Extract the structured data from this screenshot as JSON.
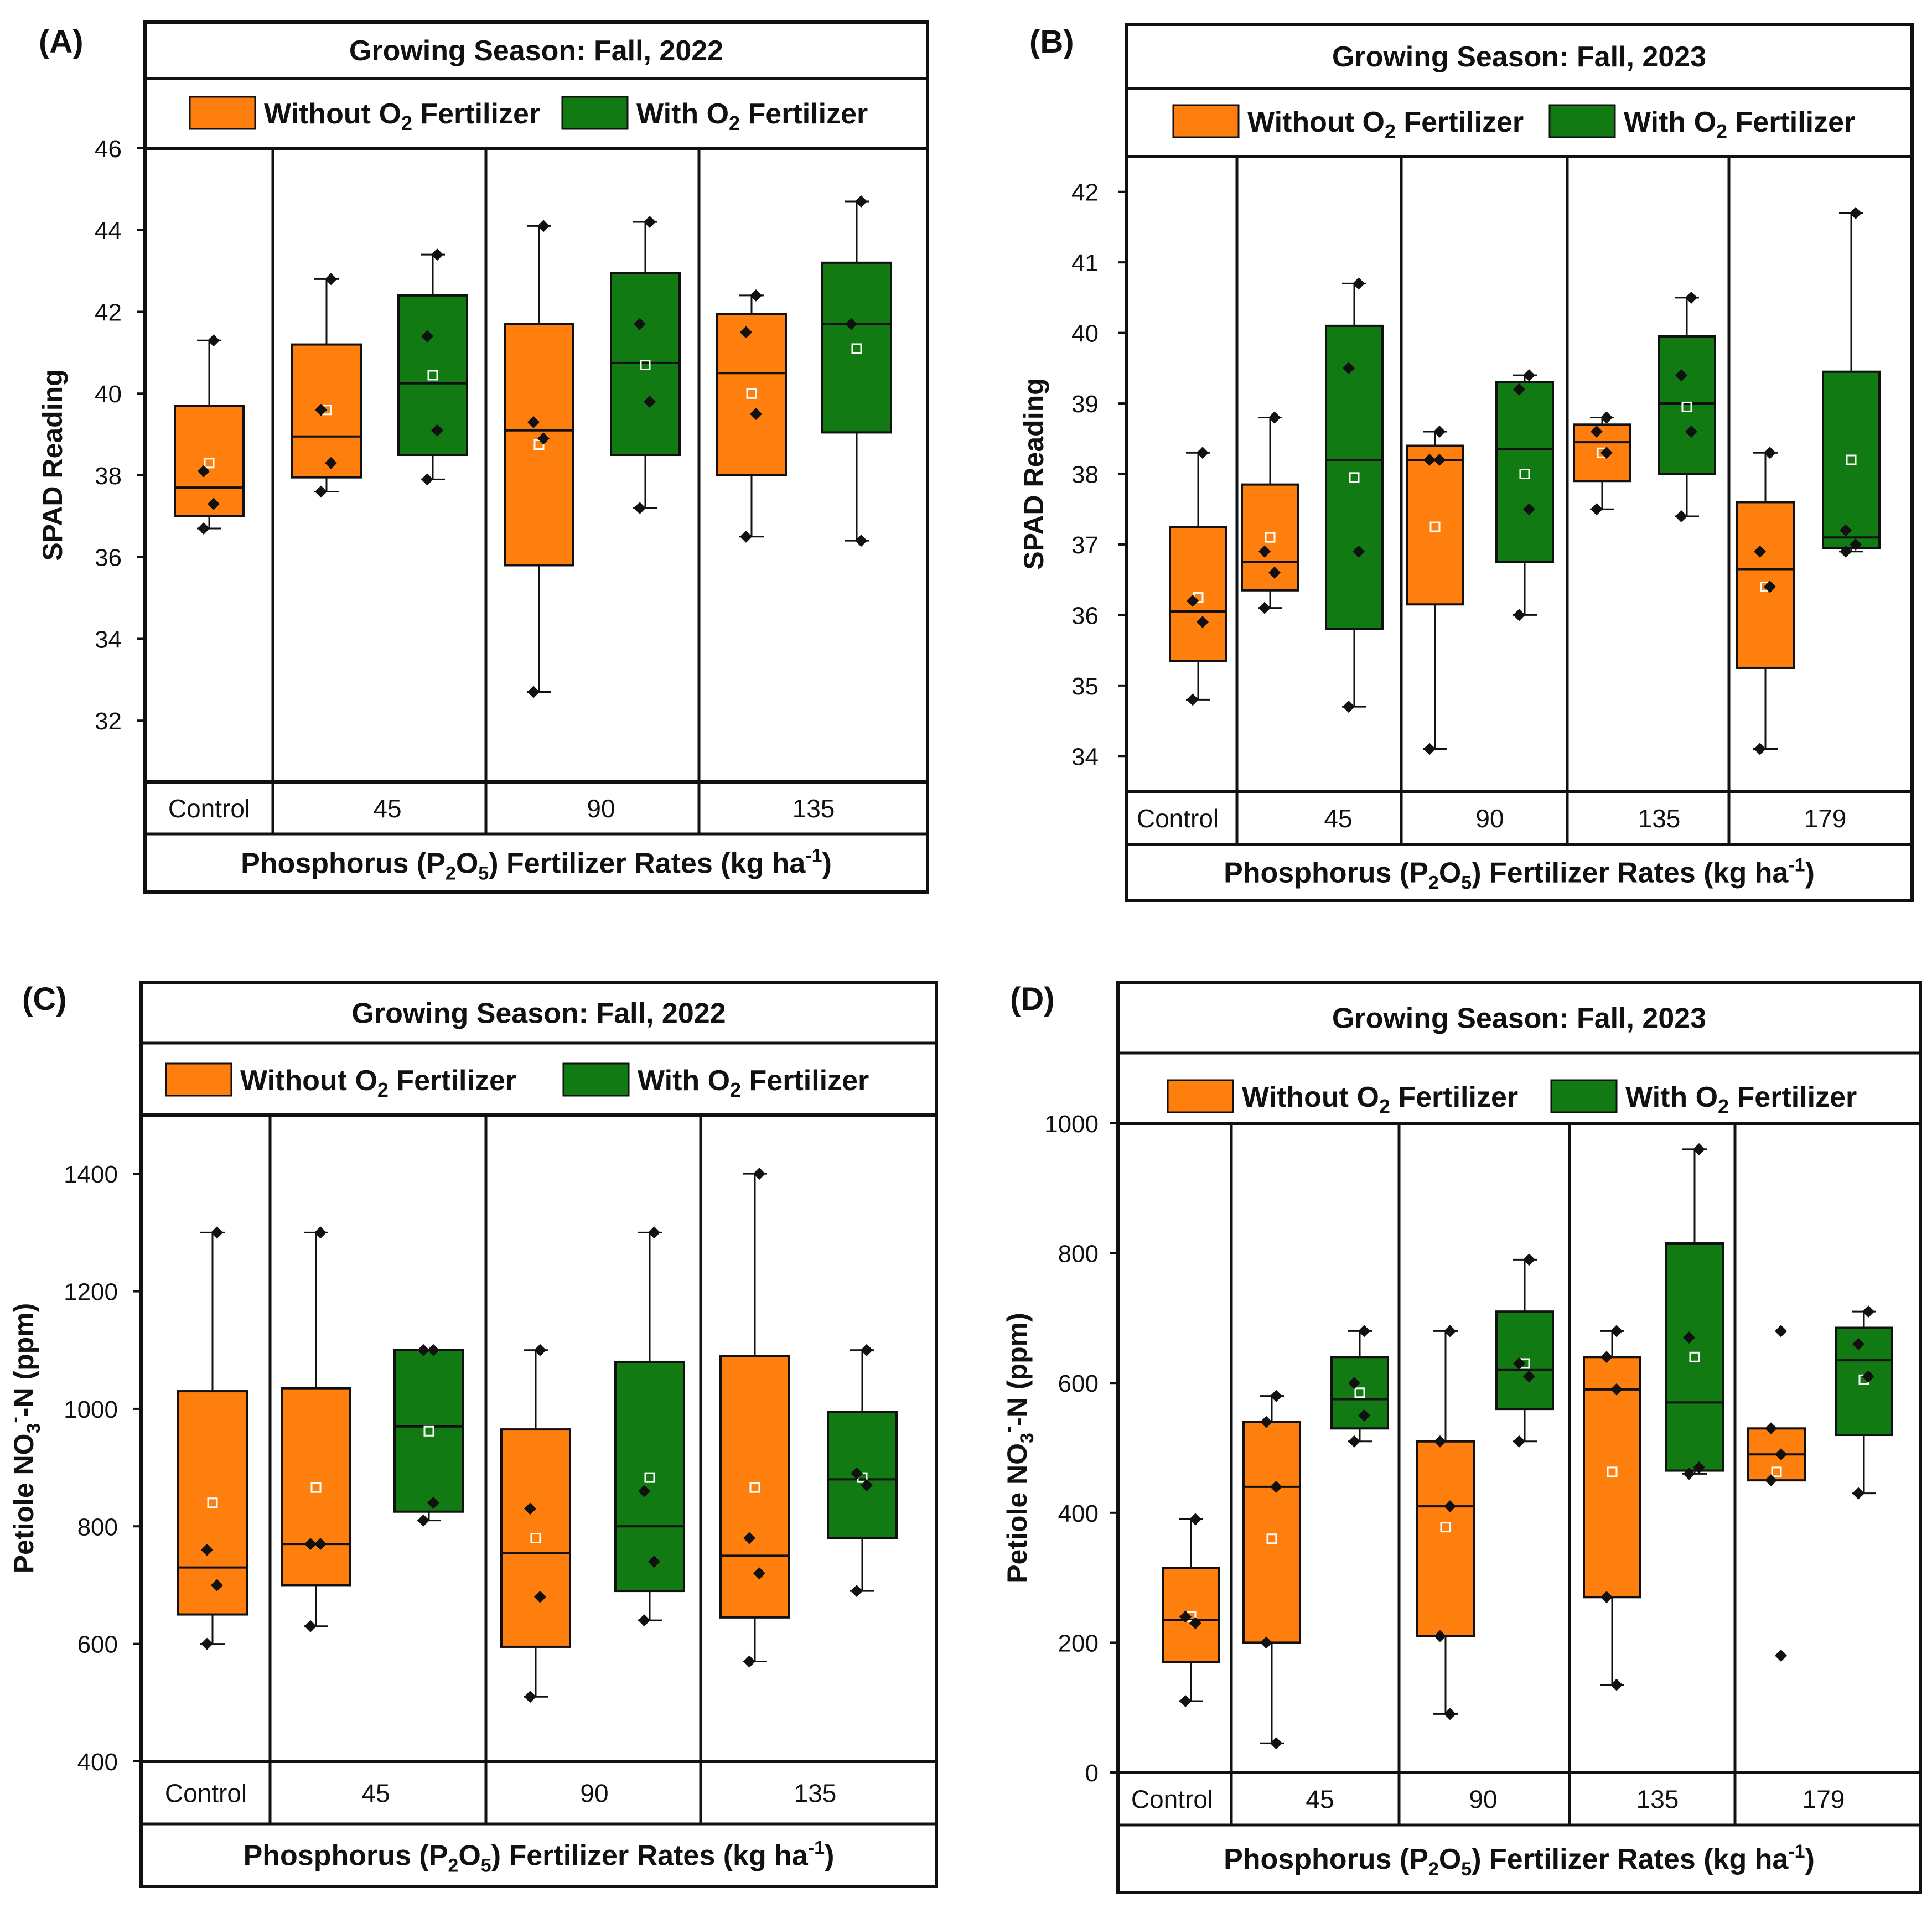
{
  "colors": {
    "without": "#ff7f0e",
    "with": "#127a12",
    "ink": "#111111",
    "background": "#ffffff"
  },
  "legend": {
    "without": {
      "prefix": "Without O",
      "sub": "2",
      "suffix": " Fertilizer"
    },
    "with": {
      "prefix": "With O",
      "sub": "2",
      "suffix": " Fertilizer"
    }
  },
  "xaxis": {
    "prefix": "Phosphorus (P",
    "sub1": "2",
    "mid1": "O",
    "sub2": "5",
    "mid2": ") Fertilizer Rates (kg ha",
    "sup": "-1",
    "suffix": ")"
  },
  "chart_data": [
    {
      "panel": "(A)",
      "type": "box",
      "title": "Growing Season: Fall, 2022",
      "ylabel": {
        "text": "SPAD Reading"
      },
      "ylim": [
        30.5,
        46
      ],
      "yticks": [
        32,
        34,
        36,
        38,
        40,
        42,
        44,
        46
      ],
      "categories": [
        "Control",
        "45",
        "90",
        "135"
      ],
      "series": [
        {
          "name": "Without O2 Fertilizer",
          "key": "without",
          "boxes": [
            {
              "category": "Control",
              "min": 36.7,
              "q1": 37.0,
              "median": 37.7,
              "q3": 39.7,
              "max": 41.3,
              "mean": 38.3,
              "points": [
                41.3,
                38.1,
                37.3,
                36.7
              ]
            },
            {
              "category": "45",
              "min": 37.6,
              "q1": 37.95,
              "median": 38.95,
              "q3": 41.2,
              "max": 42.8,
              "mean": 39.6,
              "points": [
                42.8,
                39.6,
                38.3,
                37.6
              ]
            },
            {
              "category": "90",
              "min": 32.7,
              "q1": 35.8,
              "median": 39.1,
              "q3": 41.7,
              "max": 44.1,
              "mean": 38.75,
              "points": [
                44.1,
                39.3,
                38.9,
                32.7
              ]
            },
            {
              "category": "135",
              "min": 36.5,
              "q1": 38.0,
              "median": 40.5,
              "q3": 41.95,
              "max": 42.4,
              "mean": 40.0,
              "points": [
                42.4,
                41.5,
                39.5,
                36.5
              ]
            }
          ]
        },
        {
          "name": "With O2 Fertilizer",
          "key": "with",
          "boxes": [
            {
              "category": "45",
              "min": 37.9,
              "q1": 38.5,
              "median": 40.25,
              "q3": 42.4,
              "max": 43.4,
              "mean": 40.45,
              "points": [
                43.4,
                41.4,
                39.1,
                37.9
              ]
            },
            {
              "category": "90",
              "min": 37.2,
              "q1": 38.5,
              "median": 40.75,
              "q3": 42.95,
              "max": 44.2,
              "mean": 40.7,
              "points": [
                44.2,
                41.7,
                39.8,
                37.2
              ]
            },
            {
              "category": "135",
              "min": 36.4,
              "q1": 39.05,
              "median": 41.7,
              "q3": 43.2,
              "max": 44.7,
              "mean": 41.1,
              "points": [
                44.7,
                41.7,
                36.4
              ]
            }
          ]
        }
      ]
    },
    {
      "panel": "(B)",
      "type": "box",
      "title": "Growing Season: Fall, 2023",
      "ylabel": {
        "text": "SPAD Reading"
      },
      "ylim": [
        33.5,
        42.5
      ],
      "yticks": [
        34,
        35,
        36,
        37,
        38,
        39,
        40,
        41,
        42
      ],
      "categories": [
        "Control",
        "45",
        "90",
        "135",
        "179"
      ],
      "series": [
        {
          "name": "Without O2 Fertilizer",
          "key": "without",
          "boxes": [
            {
              "category": "Control",
              "min": 34.8,
              "q1": 35.35,
              "median": 36.05,
              "q3": 37.25,
              "max": 38.3,
              "mean": 36.25,
              "points": [
                38.3,
                36.2,
                35.9,
                34.8
              ]
            },
            {
              "category": "45",
              "min": 36.1,
              "q1": 36.35,
              "median": 36.75,
              "q3": 37.85,
              "max": 38.8,
              "mean": 37.1,
              "points": [
                38.8,
                36.9,
                36.6,
                36.1
              ]
            },
            {
              "category": "90",
              "min": 34.1,
              "q1": 36.15,
              "median": 38.2,
              "q3": 38.4,
              "max": 38.6,
              "mean": 37.25,
              "points": [
                38.6,
                38.2,
                38.2,
                34.1
              ]
            },
            {
              "category": "135",
              "min": 37.5,
              "q1": 37.9,
              "median": 38.45,
              "q3": 38.7,
              "max": 38.8,
              "mean": 38.3,
              "points": [
                38.8,
                38.6,
                38.3,
                37.5
              ]
            },
            {
              "category": "179",
              "min": 34.1,
              "q1": 35.25,
              "median": 36.65,
              "q3": 37.6,
              "max": 38.3,
              "mean": 36.4,
              "points": [
                38.3,
                36.9,
                36.4,
                34.1
              ]
            }
          ]
        },
        {
          "name": "With O2 Fertilizer",
          "key": "with",
          "boxes": [
            {
              "category": "45",
              "min": 34.7,
              "q1": 35.8,
              "median": 38.2,
              "q3": 40.1,
              "max": 40.7,
              "mean": 37.95,
              "points": [
                40.7,
                39.5,
                36.9,
                34.7
              ]
            },
            {
              "category": "90",
              "min": 36.0,
              "q1": 36.75,
              "median": 38.35,
              "q3": 39.3,
              "max": 39.4,
              "mean": 38.0,
              "points": [
                39.4,
                39.2,
                37.5,
                36.0
              ]
            },
            {
              "category": "135",
              "min": 37.4,
              "q1": 38.0,
              "median": 39.0,
              "q3": 39.95,
              "max": 40.5,
              "mean": 38.95,
              "points": [
                40.5,
                39.4,
                38.6,
                37.4
              ]
            },
            {
              "category": "179",
              "min": 36.9,
              "q1": 36.95,
              "median": 37.1,
              "q3": 39.45,
              "max": 41.7,
              "mean": 38.2,
              "points": [
                41.7,
                37.2,
                37.0,
                36.9
              ]
            }
          ]
        }
      ]
    },
    {
      "panel": "(C)",
      "type": "box",
      "title": "Growing Season: Fall, 2022",
      "ylabel": {
        "prefix": "Petiole NO",
        "sub": "3",
        "sup": "-",
        "suffix": "-N (ppm)"
      },
      "ylim": [
        400,
        1500
      ],
      "yticks": [
        400,
        600,
        800,
        1000,
        1200,
        1400
      ],
      "categories": [
        "Control",
        "45",
        "90",
        "135"
      ],
      "series": [
        {
          "name": "Without O2 Fertilizer",
          "key": "without",
          "boxes": [
            {
              "category": "Control",
              "min": 600,
              "q1": 650,
              "median": 730,
              "q3": 1030,
              "max": 1300,
              "mean": 840,
              "points": [
                1300,
                760,
                700,
                600
              ]
            },
            {
              "category": "45",
              "min": 630,
              "q1": 700,
              "median": 770,
              "q3": 1035,
              "max": 1300,
              "mean": 866,
              "points": [
                1300,
                770,
                770,
                630
              ]
            },
            {
              "category": "90",
              "min": 510,
              "q1": 595,
              "median": 755,
              "q3": 965,
              "max": 1100,
              "mean": 780,
              "points": [
                1100,
                830,
                680,
                510
              ]
            },
            {
              "category": "135",
              "min": 570,
              "q1": 645,
              "median": 750,
              "q3": 1090,
              "max": 1400,
              "mean": 866,
              "points": [
                1400,
                780,
                720,
                570
              ]
            }
          ]
        },
        {
          "name": "With O2 Fertilizer",
          "key": "with",
          "boxes": [
            {
              "category": "45",
              "min": 810,
              "q1": 825,
              "median": 970,
              "q3": 1100,
              "max": 1100,
              "mean": 962,
              "points": [
                1100,
                1100,
                840,
                810
              ]
            },
            {
              "category": "90",
              "min": 640,
              "q1": 690,
              "median": 800,
              "q3": 1080,
              "max": 1300,
              "mean": 883,
              "points": [
                1300,
                860,
                740,
                640
              ]
            },
            {
              "category": "135",
              "min": 690,
              "q1": 780,
              "median": 880,
              "q3": 995,
              "max": 1100,
              "mean": 883,
              "points": [
                1100,
                890,
                870,
                690
              ]
            }
          ]
        }
      ]
    },
    {
      "panel": "(D)",
      "type": "box",
      "title": "Growing Season: Fall, 2023",
      "ylabel": {
        "prefix": "Petiole NO",
        "sub": "3",
        "sup": "-",
        "suffix": "-N (ppm)"
      },
      "ylim": [
        0,
        1000
      ],
      "yticks": [
        0,
        200,
        400,
        600,
        800,
        1000
      ],
      "categories": [
        "Control",
        "45",
        "90",
        "135",
        "179"
      ],
      "series": [
        {
          "name": "Without O2 Fertilizer",
          "key": "without",
          "boxes": [
            {
              "category": "Control",
              "min": 110,
              "q1": 170,
              "median": 235,
              "q3": 315,
              "max": 390,
              "mean": 240,
              "points": [
                390,
                240,
                230,
                110
              ]
            },
            {
              "category": "45",
              "min": 45,
              "q1": 200,
              "median": 440,
              "q3": 540,
              "max": 580,
              "mean": 360,
              "points": [
                580,
                540,
                440,
                200,
                45
              ]
            },
            {
              "category": "90",
              "min": 90,
              "q1": 210,
              "median": 410,
              "q3": 510,
              "max": 680,
              "mean": 378,
              "points": [
                680,
                510,
                410,
                210,
                90
              ]
            },
            {
              "category": "135",
              "min": 135,
              "q1": 270,
              "median": 590,
              "q3": 640,
              "max": 680,
              "mean": 463,
              "points": [
                680,
                640,
                590,
                270,
                135
              ]
            },
            {
              "category": "179",
              "min": 450,
              "q1": 450,
              "median": 490,
              "q3": 530,
              "max": 530,
              "mean": 463,
              "points": [
                680,
                530,
                490,
                450,
                180
              ]
            }
          ]
        },
        {
          "name": "With O2 Fertilizer",
          "key": "with",
          "boxes": [
            {
              "category": "45",
              "min": 510,
              "q1": 530,
              "median": 575,
              "q3": 640,
              "max": 680,
              "mean": 585,
              "points": [
                680,
                600,
                550,
                510
              ]
            },
            {
              "category": "90",
              "min": 510,
              "q1": 560,
              "median": 620,
              "q3": 710,
              "max": 790,
              "mean": 630,
              "points": [
                790,
                630,
                610,
                510
              ]
            },
            {
              "category": "135",
              "min": 460,
              "q1": 465,
              "median": 570,
              "q3": 815,
              "max": 960,
              "mean": 640,
              "points": [
                960,
                670,
                470,
                460
              ]
            },
            {
              "category": "179",
              "min": 430,
              "q1": 520,
              "median": 635,
              "q3": 685,
              "max": 710,
              "mean": 605,
              "points": [
                710,
                660,
                610,
                430
              ]
            }
          ]
        }
      ]
    }
  ]
}
